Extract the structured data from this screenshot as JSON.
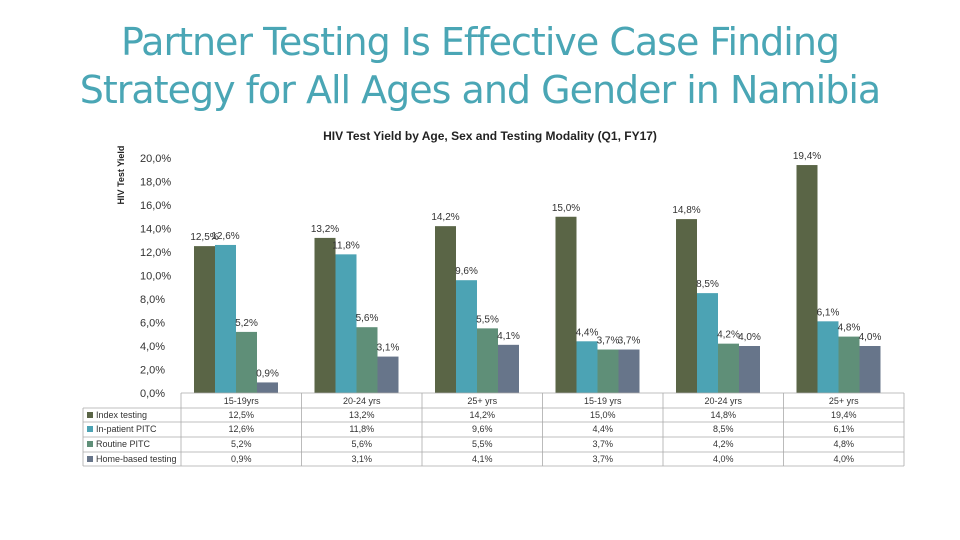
{
  "slide": {
    "title_line1": "Partner Testing Is Effective Case Finding",
    "title_line2": "Strategy for All Ages and Gender in Namibia"
  },
  "chart_data": {
    "type": "bar",
    "title": "HIV Test Yield by Age, Sex and Testing Modality (Q1, FY17)",
    "ylabel": "HIV Test Yield",
    "xlabel": "",
    "ylim": [
      0,
      20
    ],
    "yticks": [
      "20,0%",
      "18,0%",
      "16,0%",
      "14,0%",
      "12,0%",
      "10,0%",
      "8,0%",
      "6,0%",
      "4,0%",
      "2,0%",
      "0,0%"
    ],
    "categories": [
      "15-19yrs",
      "20-24 yrs",
      "25+ yrs",
      "15-19 yrs",
      "20-24 yrs",
      "25+ yrs"
    ],
    "series": [
      {
        "name": "Index testing",
        "color": "#5a6546",
        "values": [
          12.5,
          13.2,
          14.2,
          15.0,
          14.8,
          19.4
        ],
        "labels": [
          "12,5%",
          "13,2%",
          "14,2%",
          "15,0%",
          "14,8%",
          "19,4%"
        ]
      },
      {
        "name": "In-patient PITC",
        "color": "#4ca3b4",
        "values": [
          12.6,
          11.8,
          9.6,
          4.4,
          8.5,
          6.1
        ],
        "labels": [
          "12,6%",
          "11,8%",
          "9,6%",
          "4,4%",
          "8,5%",
          "6,1%"
        ]
      },
      {
        "name": "Routine PITC",
        "color": "#5f8f78",
        "values": [
          5.2,
          5.6,
          5.5,
          3.7,
          4.2,
          4.8
        ],
        "labels": [
          "5,2%",
          "5,6%",
          "5,5%",
          "3,7%",
          "4,2%",
          "4,8%"
        ]
      },
      {
        "name": "Home-based testing",
        "color": "#67758a",
        "values": [
          0.9,
          3.1,
          4.1,
          3.7,
          4.0,
          4.0
        ],
        "labels": [
          "0,9%",
          "3,1%",
          "4,1%",
          "3,7%",
          "4,0%",
          "4,0%"
        ]
      }
    ],
    "legend": "data-table-left",
    "grid": false
  }
}
